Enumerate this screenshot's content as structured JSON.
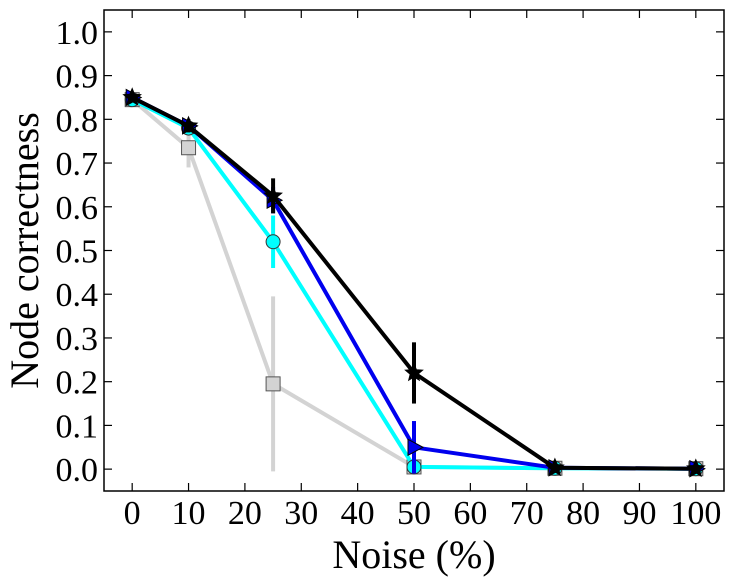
{
  "chart_data": {
    "type": "line",
    "title": "",
    "xlabel": "Noise (%)",
    "ylabel": "Node correctness",
    "xlim": [
      -5,
      105
    ],
    "ylim": [
      -0.05,
      1.05
    ],
    "x_ticks": [
      0,
      10,
      20,
      30,
      40,
      50,
      60,
      70,
      80,
      90,
      100
    ],
    "y_ticks": [
      0.0,
      0.1,
      0.2,
      0.3,
      0.4,
      0.5,
      0.6,
      0.7,
      0.8,
      0.9,
      1.0
    ],
    "y_tick_labels": [
      "0.0",
      "0.1",
      "0.2",
      "0.3",
      "0.4",
      "0.5",
      "0.6",
      "0.7",
      "0.8",
      "0.9",
      "1.0"
    ],
    "x": [
      0,
      10,
      25,
      50,
      75,
      100
    ],
    "grid": false,
    "legend": "none",
    "series": [
      {
        "color": "#d3d3d3",
        "marker": "square",
        "values": [
          0.845,
          0.735,
          0.195,
          0.005,
          0.002,
          0.001
        ],
        "error": [
          0.005,
          0.045,
          0.2,
          0.005,
          0.002,
          0.001
        ]
      },
      {
        "color": "#00ffff",
        "marker": "circle",
        "values": [
          0.845,
          0.78,
          0.52,
          0.005,
          0.002,
          0.001
        ],
        "error": [
          0.005,
          0.01,
          0.06,
          0.005,
          0.002,
          0.001
        ]
      },
      {
        "color": "#0000ee",
        "marker": "triangle-right",
        "values": [
          0.85,
          0.785,
          0.615,
          0.05,
          0.003,
          0.001
        ],
        "error": [
          0.005,
          0.01,
          0.03,
          0.06,
          0.002,
          0.001
        ]
      },
      {
        "color": "#000000",
        "marker": "star",
        "values": [
          0.85,
          0.785,
          0.625,
          0.22,
          0.003,
          0.001
        ],
        "error": [
          0.005,
          0.015,
          0.04,
          0.07,
          0.002,
          0.001
        ]
      }
    ]
  }
}
